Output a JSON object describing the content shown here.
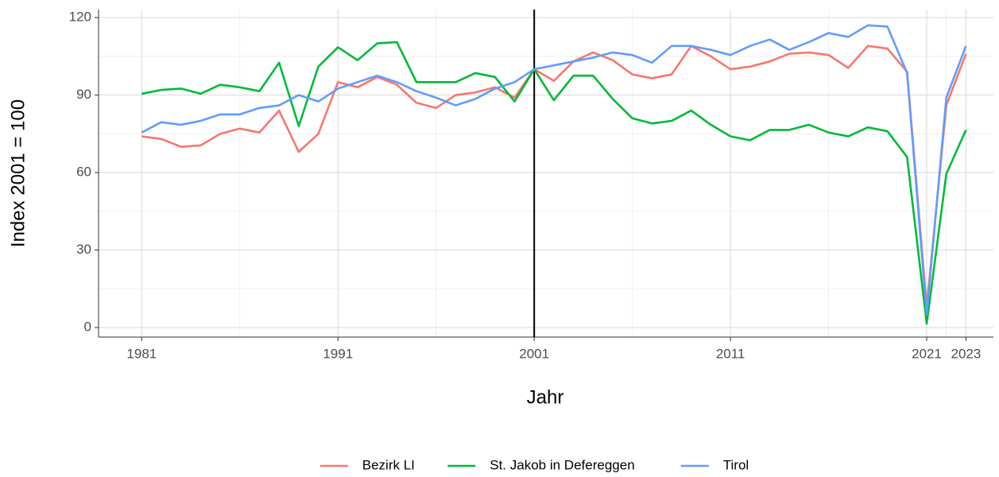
{
  "chart_data": {
    "type": "line",
    "x_label": "Jahr",
    "y_label": "Index 2001 = 100",
    "x": [
      1981,
      1982,
      1983,
      1984,
      1985,
      1986,
      1987,
      1988,
      1989,
      1990,
      1991,
      1992,
      1993,
      1994,
      1995,
      1996,
      1997,
      1998,
      1999,
      2000,
      2001,
      2002,
      2003,
      2004,
      2005,
      2006,
      2007,
      2008,
      2009,
      2010,
      2011,
      2012,
      2013,
      2014,
      2015,
      2016,
      2017,
      2018,
      2019,
      2020,
      2021,
      2022,
      2023
    ],
    "series": [
      {
        "name": "Bezirk LI",
        "color": "#F8766D",
        "values": [
          74,
          73,
          70,
          70.5,
          75,
          77,
          75.5,
          84,
          68,
          75,
          95,
          93,
          97,
          94,
          87,
          85,
          90,
          91,
          93,
          89,
          100,
          95.5,
          103,
          106.5,
          103.5,
          98,
          96.5,
          98,
          109,
          105,
          100,
          101,
          103,
          106,
          106.5,
          105.5,
          100.5,
          109,
          108,
          99,
          8,
          86,
          106
        ]
      },
      {
        "name": "St. Jakob in Defereggen",
        "color": "#00BA38",
        "values": [
          90.5,
          92,
          92.5,
          90.5,
          94,
          93,
          91.5,
          102.5,
          78,
          101,
          108.5,
          103.5,
          110,
          110.5,
          95,
          95,
          95,
          98.5,
          97,
          87.5,
          100,
          88,
          97.5,
          97.5,
          88.5,
          81,
          79,
          80,
          84,
          78.5,
          74,
          72.5,
          76.5,
          76.5,
          78.5,
          75.5,
          74,
          77.5,
          76,
          66,
          1.5,
          59.5,
          76.5
        ]
      },
      {
        "name": "Tirol",
        "color": "#619CFF",
        "values": [
          75.5,
          79.5,
          78.5,
          80,
          82.5,
          82.5,
          85,
          86,
          90,
          87.5,
          92.5,
          95,
          97.5,
          95,
          91.5,
          89,
          86,
          88.5,
          92.5,
          95,
          100,
          101.5,
          103,
          104.5,
          106.5,
          105.5,
          102.5,
          109,
          109,
          107.5,
          105.5,
          109,
          111.5,
          107.5,
          110.5,
          114,
          112.5,
          117,
          116.5,
          98.5,
          5,
          89,
          109
        ]
      }
    ],
    "xlim": [
      1978.8,
      2024.4
    ],
    "xticks": [
      1981,
      1991,
      2001,
      2011,
      2021,
      2023
    ],
    "ylim": [
      -3.7,
      123.1
    ],
    "yticks": [
      0,
      30,
      60,
      90,
      120
    ],
    "vline": 2001,
    "grid": true,
    "legend": "bottom"
  }
}
